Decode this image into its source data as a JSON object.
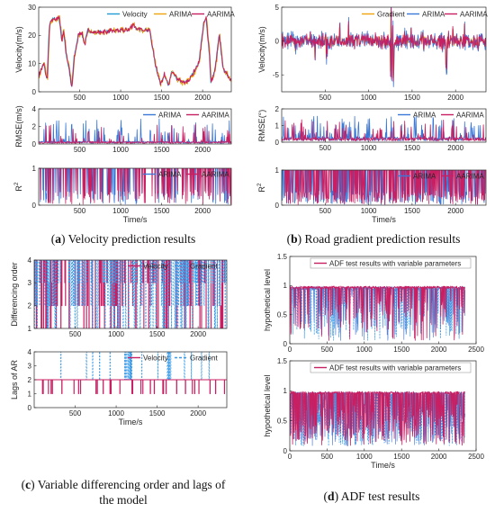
{
  "captions": [
    {
      "letter": "a",
      "text": "Velocity prediction results"
    },
    {
      "letter": "b",
      "text": "Road gradient prediction results"
    },
    {
      "letter": "c",
      "text": "Variable differencing order and lags of",
      "text2": "the model"
    },
    {
      "letter": "d",
      "text": "ADF test results"
    }
  ],
  "colors": {
    "velocity": "#1f9bd6",
    "gradient": "#f0a30a",
    "arima": "#3a78d8",
    "aarima": "#c81e62",
    "c_velocity": "#c81e62",
    "c_gradient": "#3a9be8"
  },
  "chart_data": [
    {
      "id": "a1",
      "type": "line",
      "xlim": [
        0,
        2350
      ],
      "ylim": [
        0,
        30
      ],
      "xticks": [
        500,
        1000,
        1500,
        2000
      ],
      "yticks": [
        0,
        10,
        20,
        30
      ],
      "ylabel": "Velocity(m/s)",
      "series": [
        {
          "name": "Velocity"
        },
        {
          "name": "ARIMA"
        },
        {
          "name": "AARIMA"
        }
      ],
      "profile": [
        [
          0,
          6
        ],
        [
          60,
          10
        ],
        [
          100,
          4
        ],
        [
          130,
          24
        ],
        [
          180,
          26
        ],
        [
          250,
          26
        ],
        [
          280,
          18
        ],
        [
          300,
          22
        ],
        [
          330,
          14
        ],
        [
          370,
          8
        ],
        [
          400,
          1
        ],
        [
          430,
          12
        ],
        [
          480,
          20
        ],
        [
          520,
          21
        ],
        [
          560,
          17
        ],
        [
          600,
          22
        ],
        [
          650,
          21
        ],
        [
          1100,
          22
        ],
        [
          1150,
          24
        ],
        [
          1200,
          22
        ],
        [
          1350,
          22
        ],
        [
          1420,
          10
        ],
        [
          1480,
          3
        ],
        [
          1530,
          6
        ],
        [
          1580,
          2
        ],
        [
          1620,
          7
        ],
        [
          1700,
          4
        ],
        [
          1780,
          3
        ],
        [
          1850,
          5
        ],
        [
          1950,
          10
        ],
        [
          2010,
          24
        ],
        [
          2040,
          26
        ],
        [
          2080,
          14
        ],
        [
          2100,
          3
        ],
        [
          2150,
          8
        ],
        [
          2200,
          20
        ],
        [
          2250,
          8
        ],
        [
          2350,
          4
        ]
      ]
    },
    {
      "id": "a2",
      "type": "line",
      "xlim": [
        0,
        2350
      ],
      "ylim": [
        0,
        4
      ],
      "xticks": [
        500,
        1000,
        1500,
        2000
      ],
      "yticks": [
        0,
        2,
        4
      ],
      "ylabel": "RMSE(m/s)",
      "series": [
        {
          "name": "ARIMA"
        },
        {
          "name": "AARIMA"
        }
      ]
    },
    {
      "id": "a3",
      "type": "line",
      "xlim": [
        0,
        2350
      ],
      "ylim": [
        0,
        1
      ],
      "xticks": [
        500,
        1000,
        1500,
        2000
      ],
      "yticks": [
        0,
        1
      ],
      "ylabel": "R",
      "ylabel_sup": "2",
      "xlabel": "Time/s",
      "series": [
        {
          "name": "ARIMA"
        },
        {
          "name": "AARIMA"
        }
      ]
    },
    {
      "id": "b1",
      "type": "line",
      "xlim": [
        0,
        2350
      ],
      "ylim": [
        -7.5,
        5
      ],
      "xticks": [
        500,
        1000,
        1500,
        2000
      ],
      "yticks": [
        -5,
        0,
        5
      ],
      "ylabel": "Velocity(m/s)",
      "series": [
        {
          "name": "Gradient"
        },
        {
          "name": "ARIMA"
        },
        {
          "name": "AARIMA"
        }
      ]
    },
    {
      "id": "b2",
      "type": "line",
      "xlim": [
        0,
        2350
      ],
      "ylim": [
        0,
        2
      ],
      "xticks": [
        500,
        1000,
        1500,
        2000
      ],
      "yticks": [
        0,
        1,
        2
      ],
      "ylabel": "RMSE(°)",
      "series": [
        {
          "name": "ARIMA"
        },
        {
          "name": "AARIMA"
        }
      ]
    },
    {
      "id": "b3",
      "type": "line",
      "xlim": [
        0,
        2350
      ],
      "ylim": [
        0,
        1
      ],
      "xticks": [
        500,
        1000,
        1500,
        2000
      ],
      "yticks": [
        0,
        1
      ],
      "ylabel": "R",
      "ylabel_sup": "2",
      "xlabel": "Time/s",
      "series": [
        {
          "name": "ARIMA"
        },
        {
          "name": "AARIMA"
        }
      ]
    },
    {
      "id": "c1",
      "type": "line",
      "xlim": [
        0,
        2350
      ],
      "ylim": [
        1,
        4
      ],
      "xticks": [
        500,
        1000,
        1500,
        2000
      ],
      "yticks": [
        1,
        2,
        3,
        4
      ],
      "ylabel": "Differencing order",
      "series": [
        {
          "name": "Velocity"
        },
        {
          "name": "Gradient"
        }
      ]
    },
    {
      "id": "c2",
      "type": "line",
      "xlim": [
        0,
        2350
      ],
      "ylim": [
        0,
        4
      ],
      "xticks": [
        500,
        1000,
        1500,
        2000
      ],
      "yticks": [
        0,
        1,
        2,
        3,
        4
      ],
      "ylabel": "Lags of AR",
      "xlabel": "Time/s",
      "series": [
        {
          "name": "Velocity"
        },
        {
          "name": "Gradient"
        }
      ]
    },
    {
      "id": "d1",
      "type": "line",
      "xlim": [
        0,
        2500
      ],
      "ylim": [
        0,
        1.5
      ],
      "xticks": [
        0,
        500,
        1000,
        1500,
        2000,
        2500
      ],
      "yticks": [
        0,
        0.5,
        1,
        1.5
      ],
      "ylabel": "hypothetical level",
      "series": [
        {
          "name": "ADF test results with variable parameters"
        }
      ]
    },
    {
      "id": "d2",
      "type": "line",
      "xlim": [
        0,
        2500
      ],
      "ylim": [
        0,
        1.5
      ],
      "xticks": [
        0,
        500,
        1000,
        1500,
        2000,
        2500
      ],
      "yticks": [
        0,
        0.5,
        1,
        1.5
      ],
      "ylabel": "hypothetical level",
      "xlabel": "Time/s",
      "series": [
        {
          "name": "ADF test results with variable parameters"
        }
      ]
    }
  ]
}
